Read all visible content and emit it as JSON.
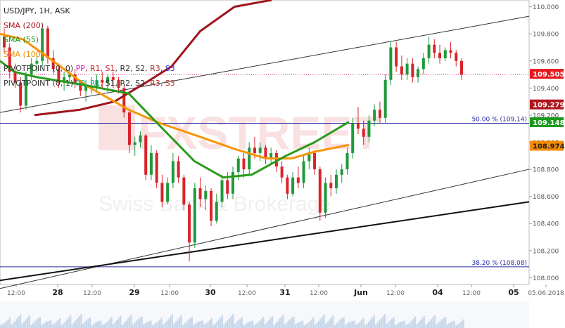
{
  "chart_data": {
    "type": "candlestick",
    "title": "USD/JPY, 1H, ASK",
    "legend": [
      {
        "label": "SMA (200)",
        "color": "#b0141e"
      },
      {
        "label": "SMA (55)",
        "color": "#1a9a1a"
      },
      {
        "label": "SMA (100)",
        "color": "#f58a00"
      },
      {
        "label": "PIVOTPOINT (0, 0)",
        "color": "#333333",
        "items": [
          {
            "label": "PP",
            "color": "#cc22cc"
          },
          {
            "label": "R1",
            "color": "#cc2222"
          },
          {
            "label": "S1",
            "color": "#cc2222"
          },
          {
            "label": "R2",
            "color": "#333333"
          },
          {
            "label": "S2",
            "color": "#333333"
          },
          {
            "label": "R3",
            "color": "#aa3333"
          },
          {
            "label": "S3",
            "color": "#3333cc"
          }
        ]
      },
      {
        "label": "PIVOTPOINT (0, 1)",
        "color": "#333333",
        "items": [
          {
            "label": "PP",
            "color": "#22aa99"
          },
          {
            "label": "R1",
            "color": "#22aa99"
          },
          {
            "label": "S1",
            "color": "#333333"
          },
          {
            "label": "R2",
            "color": "#333333"
          },
          {
            "label": "S2",
            "color": "#333333"
          },
          {
            "label": "R3",
            "color": "#aa3333"
          },
          {
            "label": "S3",
            "color": "#aa3333"
          }
        ]
      }
    ],
    "y_axis": {
      "min": 107.95,
      "max": 110.05,
      "ticks": [
        "108.000",
        "108.200",
        "108.400",
        "108.600",
        "108.800",
        "109.000",
        "109.200",
        "109.400",
        "109.600",
        "109.800",
        "110.000"
      ]
    },
    "x_axis": {
      "labels": [
        "12:00",
        "28",
        "12:00",
        "29",
        "12:00",
        "30",
        "12:00",
        "31",
        "12:00",
        "Jun",
        "12:00",
        "04",
        "12:00",
        "05",
        "05.06.2018"
      ]
    },
    "price_tags": [
      {
        "label": "109.505",
        "value": 109.505,
        "color": "#e8161b"
      },
      {
        "label": "109.279",
        "value": 109.279,
        "color": "#b0141e"
      },
      {
        "label": "109.148",
        "value": 109.148,
        "color": "#1a9a1a"
      },
      {
        "label": "108.974",
        "value": 108.974,
        "color": "#f58a00"
      }
    ],
    "fib_levels": [
      {
        "label": "50.00 % (109.14)",
        "value": 109.14
      },
      {
        "label": "38.20 % (108.08)",
        "value": 108.08
      }
    ],
    "candles": [
      [
        109.78,
        109.84,
        109.66,
        109.7
      ],
      [
        109.7,
        109.73,
        109.47,
        109.52
      ],
      [
        109.52,
        109.58,
        109.4,
        109.44
      ],
      [
        109.44,
        109.48,
        109.22,
        109.27
      ],
      [
        109.27,
        109.52,
        109.24,
        109.5
      ],
      [
        109.5,
        109.62,
        109.46,
        109.58
      ],
      [
        109.58,
        109.66,
        109.52,
        109.6
      ],
      [
        109.6,
        109.88,
        109.56,
        109.84
      ],
      [
        109.84,
        109.86,
        109.58,
        109.62
      ],
      [
        109.62,
        109.68,
        109.5,
        109.54
      ],
      [
        109.54,
        109.58,
        109.4,
        109.44
      ],
      [
        109.44,
        109.52,
        109.38,
        109.48
      ],
      [
        109.48,
        109.54,
        109.44,
        109.5
      ],
      [
        109.5,
        109.54,
        109.4,
        109.44
      ],
      [
        109.44,
        109.46,
        109.34,
        109.38
      ],
      [
        109.38,
        109.46,
        109.3,
        109.42
      ],
      [
        109.42,
        109.48,
        109.36,
        109.4
      ],
      [
        109.4,
        109.5,
        109.38,
        109.46
      ],
      [
        109.46,
        109.52,
        109.4,
        109.44
      ],
      [
        109.44,
        109.5,
        109.36,
        109.48
      ],
      [
        109.48,
        109.52,
        109.4,
        109.46
      ],
      [
        109.46,
        109.48,
        109.36,
        109.4
      ],
      [
        109.4,
        109.42,
        109.18,
        109.22
      ],
      [
        109.22,
        109.24,
        108.92,
        108.98
      ],
      [
        108.98,
        109.04,
        108.9,
        109.0
      ],
      [
        109.0,
        109.08,
        108.96,
        109.05
      ],
      [
        109.05,
        109.06,
        108.72,
        108.76
      ],
      [
        108.76,
        108.98,
        108.72,
        108.92
      ],
      [
        108.92,
        108.94,
        108.66,
        108.7
      ],
      [
        108.7,
        108.76,
        108.52,
        108.56
      ],
      [
        108.56,
        108.74,
        108.54,
        108.7
      ],
      [
        108.7,
        108.92,
        108.66,
        108.86
      ],
      [
        108.86,
        108.9,
        108.7,
        108.74
      ],
      [
        108.74,
        108.76,
        108.5,
        108.54
      ],
      [
        108.54,
        108.56,
        108.12,
        108.26
      ],
      [
        108.26,
        108.7,
        108.22,
        108.66
      ],
      [
        108.66,
        108.74,
        108.52,
        108.58
      ],
      [
        108.58,
        108.68,
        108.5,
        108.64
      ],
      [
        108.64,
        108.66,
        108.38,
        108.42
      ],
      [
        108.42,
        108.62,
        108.4,
        108.56
      ],
      [
        108.56,
        108.76,
        108.52,
        108.72
      ],
      [
        108.72,
        108.78,
        108.58,
        108.62
      ],
      [
        108.62,
        108.82,
        108.58,
        108.78
      ],
      [
        108.78,
        108.9,
        108.72,
        108.88
      ],
      [
        108.88,
        108.92,
        108.74,
        108.8
      ],
      [
        108.8,
        109.0,
        108.76,
        108.96
      ],
      [
        108.96,
        109.04,
        108.88,
        108.92
      ],
      [
        108.92,
        109.0,
        108.86,
        108.96
      ],
      [
        108.96,
        108.98,
        108.84,
        108.88
      ],
      [
        108.88,
        108.96,
        108.84,
        108.92
      ],
      [
        108.92,
        108.94,
        108.78,
        108.82
      ],
      [
        108.82,
        108.86,
        108.7,
        108.74
      ],
      [
        108.74,
        108.76,
        108.58,
        108.62
      ],
      [
        108.62,
        108.78,
        108.6,
        108.74
      ],
      [
        108.74,
        108.82,
        108.66,
        108.7
      ],
      [
        108.7,
        108.9,
        108.66,
        108.86
      ],
      [
        108.86,
        108.96,
        108.8,
        108.92
      ],
      [
        108.92,
        108.94,
        108.76,
        108.8
      ],
      [
        108.8,
        108.82,
        108.42,
        108.48
      ],
      [
        108.48,
        108.74,
        108.44,
        108.7
      ],
      [
        108.7,
        108.76,
        108.6,
        108.66
      ],
      [
        108.66,
        108.8,
        108.62,
        108.76
      ],
      [
        108.76,
        108.84,
        108.7,
        108.8
      ],
      [
        108.8,
        108.96,
        108.76,
        108.92
      ],
      [
        108.92,
        109.18,
        108.88,
        109.14
      ],
      [
        109.14,
        109.26,
        109.06,
        109.1
      ],
      [
        109.1,
        109.16,
        108.98,
        109.04
      ],
      [
        109.04,
        109.2,
        109.0,
        109.16
      ],
      [
        109.16,
        109.28,
        109.12,
        109.24
      ],
      [
        109.24,
        109.3,
        109.14,
        109.18
      ],
      [
        109.18,
        109.5,
        109.14,
        109.46
      ],
      [
        109.46,
        109.74,
        109.42,
        109.7
      ],
      [
        109.7,
        109.74,
        109.52,
        109.56
      ],
      [
        109.56,
        109.64,
        109.46,
        109.5
      ],
      [
        109.5,
        109.62,
        109.46,
        109.58
      ],
      [
        109.58,
        109.62,
        109.44,
        109.48
      ],
      [
        109.48,
        109.56,
        109.44,
        109.54
      ],
      [
        109.54,
        109.66,
        109.5,
        109.62
      ],
      [
        109.62,
        109.78,
        109.58,
        109.72
      ],
      [
        109.72,
        109.76,
        109.62,
        109.66
      ],
      [
        109.66,
        109.72,
        109.58,
        109.62
      ],
      [
        109.62,
        109.7,
        109.6,
        109.68
      ],
      [
        109.68,
        109.74,
        109.62,
        109.66
      ],
      [
        109.66,
        109.68,
        109.56,
        109.6
      ],
      [
        109.6,
        109.62,
        109.46,
        109.5
      ]
    ],
    "sma200": [
      [
        109.95,
        110.05
      ],
      [
        109.82,
        110.0
      ],
      [
        109.7,
        109.82
      ],
      [
        109.6,
        109.56
      ],
      [
        109.51,
        109.44
      ],
      [
        109.4,
        109.3
      ],
      [
        109.28,
        109.24
      ],
      [
        109.12,
        109.2
      ]
    ],
    "sma55": [
      [
        109.0,
        109.6
      ],
      [
        109.05,
        109.52
      ],
      [
        109.13,
        109.48
      ],
      [
        109.3,
        109.42
      ],
      [
        109.45,
        109.36
      ],
      [
        109.55,
        109.14
      ],
      [
        109.68,
        108.86
      ],
      [
        109.78,
        108.74
      ],
      [
        109.88,
        108.76
      ],
      [
        110.0,
        108.9
      ],
      [
        110.1,
        109.0
      ],
      [
        110.22,
        109.15
      ]
    ],
    "sma100": [
      [
        109.0,
        109.8
      ],
      [
        109.08,
        109.76
      ],
      [
        109.16,
        109.64
      ],
      [
        109.3,
        109.42
      ],
      [
        109.45,
        109.24
      ],
      [
        109.56,
        109.14
      ],
      [
        109.7,
        109.04
      ],
      [
        109.82,
        108.95
      ],
      [
        109.93,
        108.88
      ],
      [
        110.02,
        108.88
      ],
      [
        110.1,
        108.93
      ],
      [
        110.22,
        108.98
      ]
    ],
    "trend_lines": [
      {
        "from": [
          109.0,
          109.22
        ],
        "to": [
          110.85,
          109.93
        ],
        "width": 1,
        "color": "#333333"
      },
      {
        "from": [
          109.0,
          107.92
        ],
        "to": [
          110.85,
          108.8
        ],
        "width": 1,
        "color": "#333333"
      },
      {
        "from": [
          109.0,
          107.98
        ],
        "to": [
          110.85,
          108.56
        ],
        "width": 2,
        "color": "#111111"
      }
    ],
    "watermark_lines": [
      "FXSTREET",
      "Swiss Bank & Brokerage"
    ]
  }
}
